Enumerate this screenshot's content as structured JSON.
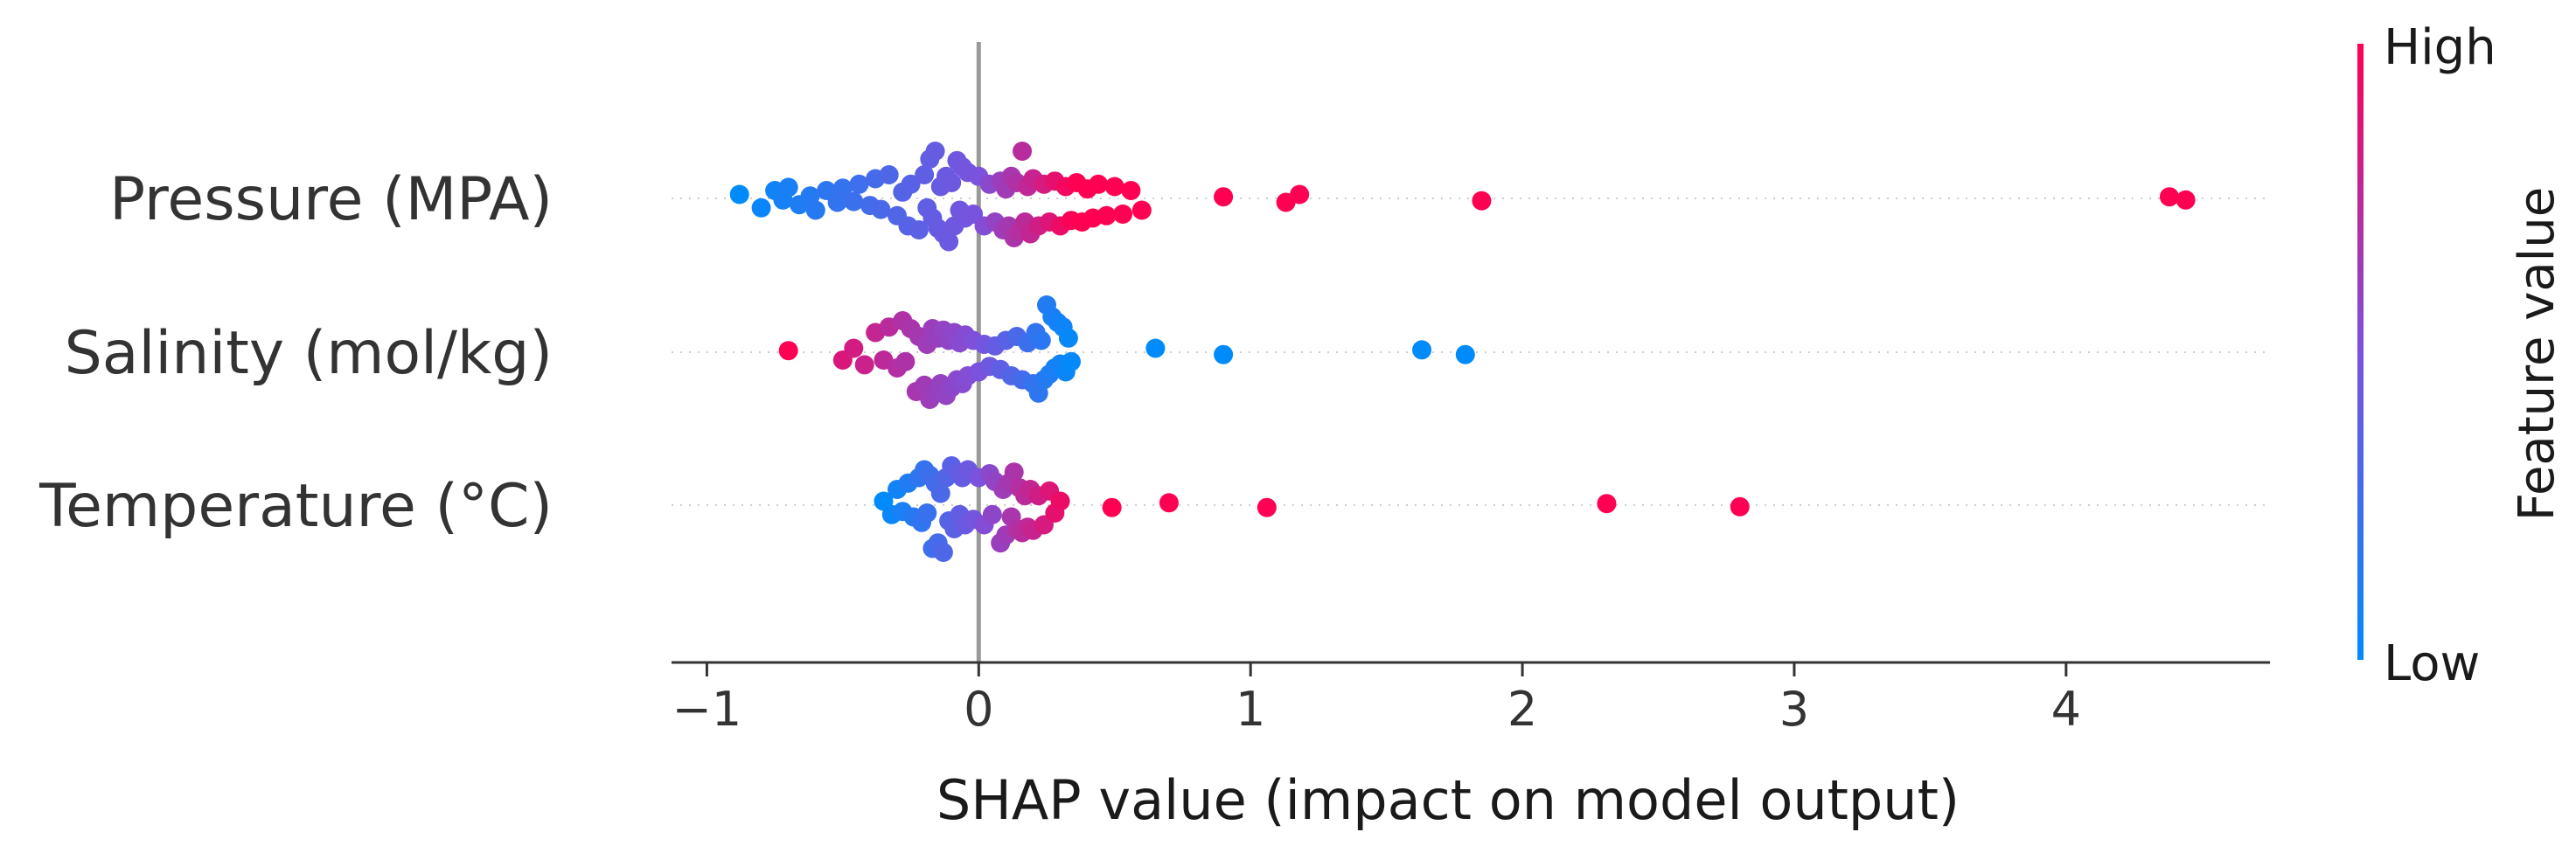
{
  "chart_data": {
    "type": "scatter",
    "subtype": "shap-beeswarm",
    "title": "",
    "xlabel": "SHAP value (impact on model output)",
    "ylabel": "",
    "xlim": [
      -1.13,
      4.75
    ],
    "xticks": [
      -1,
      0,
      1,
      2,
      3,
      4
    ],
    "xtick_labels": [
      "−1",
      "0",
      "1",
      "2",
      "3",
      "4"
    ],
    "grid": false,
    "colorbar": {
      "title": "Feature value",
      "high_label": "High",
      "low_label": "Low",
      "high_color": "#ff0052",
      "low_color": "#008bfb"
    },
    "features": [
      {
        "name": "Pressure (MPA)",
        "points": [
          [
            -0.88,
            0.05
          ],
          [
            -0.8,
            0.12
          ],
          [
            -0.75,
            0.1
          ],
          [
            -0.72,
            0.02
          ],
          [
            -0.7,
            0.14
          ],
          [
            -0.66,
            0.08
          ],
          [
            -0.62,
            0.03
          ],
          [
            -0.6,
            0.15
          ],
          [
            -0.56,
            0.1
          ],
          [
            -0.52,
            0.05
          ],
          [
            -0.5,
            0.13
          ],
          [
            -0.46,
            0.04
          ],
          [
            -0.44,
            0.18
          ],
          [
            -0.4,
            0.09
          ],
          [
            -0.38,
            0.25
          ],
          [
            -0.36,
            0.14
          ],
          [
            -0.33,
            0.3
          ],
          [
            -0.3,
            0.22
          ],
          [
            -0.28,
            0.08
          ],
          [
            -0.26,
            0.35
          ],
          [
            -0.25,
            0.18
          ],
          [
            -0.22,
            0.4
          ],
          [
            -0.2,
            0.3
          ],
          [
            -0.19,
            0.12
          ],
          [
            -0.18,
            0.5
          ],
          [
            -0.17,
            0.25
          ],
          [
            -0.16,
            0.6
          ],
          [
            -0.15,
            0.38
          ],
          [
            -0.14,
            0.15
          ],
          [
            -0.13,
            0.45
          ],
          [
            -0.12,
            0.28
          ],
          [
            -0.11,
            0.55
          ],
          [
            -0.1,
            0.2
          ],
          [
            -0.09,
            0.35
          ],
          [
            -0.08,
            0.48
          ],
          [
            -0.07,
            0.15
          ],
          [
            -0.06,
            0.4
          ],
          [
            -0.05,
            0.25
          ],
          [
            -0.04,
            0.33
          ],
          [
            -0.02,
            0.2
          ],
          [
            0.0,
            0.28
          ],
          [
            0.02,
            0.35
          ],
          [
            0.04,
            0.18
          ],
          [
            0.06,
            0.3
          ],
          [
            0.08,
            0.22
          ],
          [
            0.09,
            0.4
          ],
          [
            0.1,
            0.12
          ],
          [
            0.11,
            0.35
          ],
          [
            0.12,
            0.28
          ],
          [
            0.13,
            0.5
          ],
          [
            0.14,
            0.2
          ],
          [
            0.15,
            0.42
          ],
          [
            0.16,
            0.6
          ],
          [
            0.17,
            0.3
          ],
          [
            0.18,
            0.15
          ],
          [
            0.19,
            0.45
          ],
          [
            0.2,
            0.25
          ],
          [
            0.22,
            0.35
          ],
          [
            0.24,
            0.18
          ],
          [
            0.26,
            0.3
          ],
          [
            0.28,
            0.22
          ],
          [
            0.3,
            0.35
          ],
          [
            0.32,
            0.15
          ],
          [
            0.34,
            0.28
          ],
          [
            0.36,
            0.2
          ],
          [
            0.38,
            0.3
          ],
          [
            0.4,
            0.12
          ],
          [
            0.42,
            0.25
          ],
          [
            0.44,
            0.18
          ],
          [
            0.47,
            0.22
          ],
          [
            0.5,
            0.15
          ],
          [
            0.53,
            0.2
          ],
          [
            0.56,
            0.1
          ],
          [
            0.6,
            0.15
          ],
          [
            0.9,
            0.02
          ],
          [
            1.13,
            0.05
          ],
          [
            1.18,
            0.05
          ],
          [
            1.85,
            0.03
          ],
          [
            4.38,
            0.02
          ],
          [
            4.44,
            0.02
          ]
        ]
      },
      {
        "name": "Salinity (mol/kg)",
        "points": [
          [
            -0.7,
            0.02
          ],
          [
            -0.5,
            0.1
          ],
          [
            -0.46,
            0.05
          ],
          [
            -0.42,
            0.16
          ],
          [
            -0.38,
            0.25
          ],
          [
            -0.35,
            0.1
          ],
          [
            -0.33,
            0.32
          ],
          [
            -0.3,
            0.2
          ],
          [
            -0.28,
            0.4
          ],
          [
            -0.27,
            0.12
          ],
          [
            -0.25,
            0.3
          ],
          [
            -0.23,
            0.5
          ],
          [
            -0.22,
            0.2
          ],
          [
            -0.2,
            0.42
          ],
          [
            -0.19,
            0.1
          ],
          [
            -0.18,
            0.6
          ],
          [
            -0.17,
            0.3
          ],
          [
            -0.16,
            0.52
          ],
          [
            -0.15,
            0.18
          ],
          [
            -0.14,
            0.4
          ],
          [
            -0.13,
            0.28
          ],
          [
            -0.12,
            0.55
          ],
          [
            -0.11,
            0.15
          ],
          [
            -0.1,
            0.45
          ],
          [
            -0.09,
            0.25
          ],
          [
            -0.08,
            0.35
          ],
          [
            -0.07,
            0.12
          ],
          [
            -0.06,
            0.4
          ],
          [
            -0.05,
            0.22
          ],
          [
            -0.04,
            0.3
          ],
          [
            -0.02,
            0.15
          ],
          [
            0.0,
            0.25
          ],
          [
            0.02,
            0.1
          ],
          [
            0.04,
            0.18
          ],
          [
            0.06,
            0.08
          ],
          [
            0.08,
            0.22
          ],
          [
            0.1,
            0.15
          ],
          [
            0.12,
            0.3
          ],
          [
            0.14,
            0.2
          ],
          [
            0.16,
            0.35
          ],
          [
            0.18,
            0.12
          ],
          [
            0.2,
            0.4
          ],
          [
            0.21,
            0.25
          ],
          [
            0.22,
            0.52
          ],
          [
            0.23,
            0.15
          ],
          [
            0.24,
            0.35
          ],
          [
            0.25,
            0.6
          ],
          [
            0.26,
            0.28
          ],
          [
            0.27,
            0.45
          ],
          [
            0.28,
            0.2
          ],
          [
            0.29,
            0.38
          ],
          [
            0.3,
            0.15
          ],
          [
            0.31,
            0.32
          ],
          [
            0.32,
            0.25
          ],
          [
            0.33,
            0.18
          ],
          [
            0.34,
            0.12
          ],
          [
            0.65,
            0.05
          ],
          [
            0.9,
            0.03
          ],
          [
            1.63,
            0.03
          ],
          [
            1.79,
            0.03
          ]
        ]
      },
      {
        "name": "Temperature (°C)",
        "points": [
          [
            -0.35,
            0.05
          ],
          [
            -0.32,
            0.12
          ],
          [
            -0.3,
            0.2
          ],
          [
            -0.28,
            0.08
          ],
          [
            -0.26,
            0.28
          ],
          [
            -0.24,
            0.15
          ],
          [
            -0.22,
            0.35
          ],
          [
            -0.21,
            0.22
          ],
          [
            -0.2,
            0.45
          ],
          [
            -0.19,
            0.1
          ],
          [
            -0.18,
            0.38
          ],
          [
            -0.17,
            0.55
          ],
          [
            -0.16,
            0.28
          ],
          [
            -0.15,
            0.48
          ],
          [
            -0.14,
            0.15
          ],
          [
            -0.13,
            0.6
          ],
          [
            -0.12,
            0.35
          ],
          [
            -0.11,
            0.2
          ],
          [
            -0.1,
            0.5
          ],
          [
            -0.09,
            0.3
          ],
          [
            -0.08,
            0.42
          ],
          [
            -0.07,
            0.12
          ],
          [
            -0.06,
            0.35
          ],
          [
            -0.05,
            0.25
          ],
          [
            -0.04,
            0.45
          ],
          [
            -0.02,
            0.18
          ],
          [
            0.0,
            0.35
          ],
          [
            0.02,
            0.25
          ],
          [
            0.04,
            0.4
          ],
          [
            0.05,
            0.12
          ],
          [
            0.06,
            0.3
          ],
          [
            0.08,
            0.48
          ],
          [
            0.09,
            0.2
          ],
          [
            0.1,
            0.38
          ],
          [
            0.11,
            0.28
          ],
          [
            0.12,
            0.15
          ],
          [
            0.13,
            0.42
          ],
          [
            0.14,
            0.3
          ],
          [
            0.15,
            0.22
          ],
          [
            0.16,
            0.35
          ],
          [
            0.17,
            0.12
          ],
          [
            0.18,
            0.28
          ],
          [
            0.19,
            0.2
          ],
          [
            0.2,
            0.32
          ],
          [
            0.22,
            0.12
          ],
          [
            0.24,
            0.25
          ],
          [
            0.26,
            0.18
          ],
          [
            0.28,
            0.1
          ],
          [
            0.3,
            0.05
          ],
          [
            0.49,
            0.03
          ],
          [
            0.7,
            0.03
          ],
          [
            1.06,
            0.03
          ],
          [
            2.31,
            0.02
          ],
          [
            2.8,
            0.02
          ]
        ]
      }
    ]
  }
}
